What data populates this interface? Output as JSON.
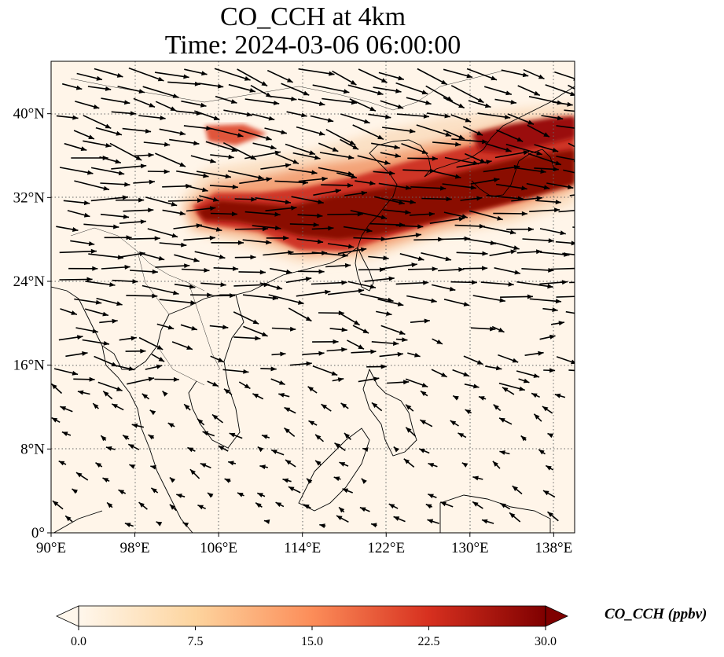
{
  "title_line1": "CO_CCH at 4km",
  "title_line2": "Time: 2024-03-06 06:00:00",
  "map": {
    "lon_range": [
      90,
      140
    ],
    "lat_range": [
      0,
      45
    ],
    "lon_ticks": [
      {
        "value": 90,
        "label": "90°E"
      },
      {
        "value": 98,
        "label": "98°E"
      },
      {
        "value": 106,
        "label": "106°E"
      },
      {
        "value": 114,
        "label": "114°E"
      },
      {
        "value": 122,
        "label": "122°E"
      },
      {
        "value": 130,
        "label": "130°E"
      },
      {
        "value": 138,
        "label": "138°E"
      }
    ],
    "lat_ticks": [
      {
        "value": 0,
        "label": "0°"
      },
      {
        "value": 8,
        "label": "8°N"
      },
      {
        "value": 16,
        "label": "16°N"
      },
      {
        "value": 24,
        "label": "24°N"
      },
      {
        "value": 32,
        "label": "32°N"
      },
      {
        "value": 40,
        "label": "40°N"
      }
    ],
    "gridlines": true,
    "field_name": "CO_CCH",
    "level": "4km",
    "wind_vectors": "shown as arrows (westerly flow dominant north of 20°N)"
  },
  "colorbar": {
    "label": "CO_CCH (ppbv)",
    "min": 0,
    "max": 30,
    "ticks": [
      "0.0",
      "7.5",
      "15.0",
      "22.5",
      "30.0"
    ],
    "colormap": "OrRd",
    "colors": [
      "#fff7ec",
      "#fdd49e",
      "#fc8d59",
      "#d7301f",
      "#7f0000"
    ],
    "extend": "both"
  }
}
